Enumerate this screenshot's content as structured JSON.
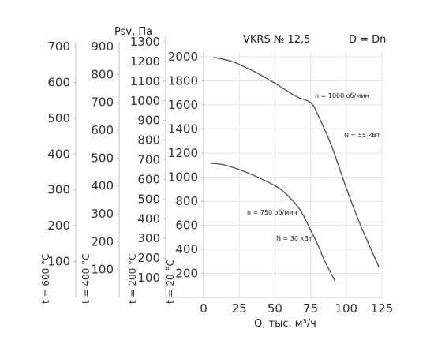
{
  "chart_data": {
    "type": "line",
    "title": "VKRS № 12,5",
    "subtitle": "D = Dn",
    "xlabel": "Q, тыс. м³/ч",
    "ylabel": "Psv, Па",
    "x_ticks": [
      "0",
      "25",
      "50",
      "75",
      "100",
      "125"
    ],
    "xlim": [
      0,
      125
    ],
    "ylim": [
      0,
      2000
    ],
    "grid": true,
    "temperature_scales": [
      {
        "label": "t = 600 °C",
        "ticks": [
          "100",
          "200",
          "300",
          "400",
          "500",
          "600",
          "700"
        ]
      },
      {
        "label": "t = 400 °C",
        "ticks": [
          "100",
          "200",
          "300",
          "400",
          "500",
          "600",
          "700",
          "800",
          "900"
        ]
      },
      {
        "label": "t = 200 °C",
        "ticks": [
          "100",
          "200",
          "300",
          "400",
          "500",
          "600",
          "700",
          "800",
          "900",
          "1000",
          "1100",
          "1200",
          "1300"
        ]
      },
      {
        "label": "t = 20 °C",
        "ticks": [
          "200",
          "400",
          "600",
          "800",
          "1000",
          "1200",
          "1400",
          "1600",
          "1800",
          "2000"
        ]
      }
    ],
    "series": [
      {
        "x": [
          7,
          20,
          35,
          50,
          65,
          75,
          80,
          90,
          100,
          110,
          123
        ],
        "y": [
          1995,
          1960,
          1880,
          1780,
          1670,
          1620,
          1520,
          1250,
          910,
          600,
          250
        ],
        "annotations": [
          "n = 1000 об/мин",
          "N = 55 кВт"
        ]
      },
      {
        "x": [
          5,
          15,
          30,
          45,
          55,
          65,
          70,
          75,
          80,
          85,
          92
        ],
        "y": [
          1115,
          1100,
          1040,
          960,
          890,
          770,
          680,
          560,
          440,
          300,
          140
        ],
        "annotations": [
          "n = 750 об/мин",
          "N = 30 кВт"
        ]
      }
    ]
  }
}
